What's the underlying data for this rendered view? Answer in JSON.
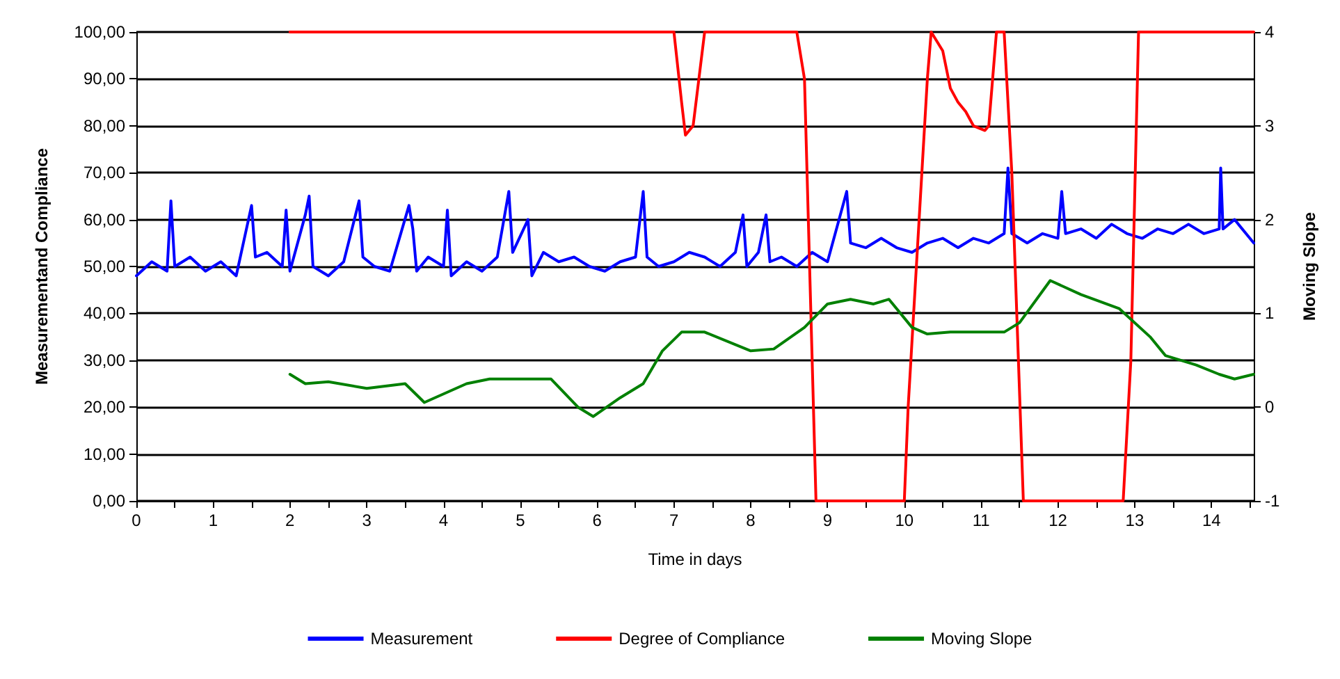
{
  "chart_data": {
    "type": "line",
    "xlabel": "Time in days",
    "ylabel": "Measurementand Compliance",
    "y2label": "Moving Slope",
    "xlim": [
      0,
      14.55
    ],
    "xticks": [
      0,
      {
        "value": 0.5,
        "label": null
      },
      1,
      {
        "value": 1.5,
        "label": null
      },
      2,
      {
        "value": 2.5,
        "label": null
      },
      3,
      {
        "value": 3.5,
        "label": null
      },
      4,
      {
        "value": 4.5,
        "label": null
      },
      5,
      {
        "value": 5.5,
        "label": null
      },
      6,
      {
        "value": 6.5,
        "label": null
      },
      7,
      {
        "value": 7.5,
        "label": null
      },
      8,
      {
        "value": 8.5,
        "label": null
      },
      9,
      {
        "value": 9.5,
        "label": null
      },
      10,
      {
        "value": 10.5,
        "label": null
      },
      11,
      {
        "value": 11.5,
        "label": null
      },
      12,
      {
        "value": 12.5,
        "label": null
      },
      13,
      {
        "value": 13.5,
        "label": null
      },
      14,
      {
        "value": 14.5,
        "label": null
      }
    ],
    "ylim": [
      0,
      100
    ],
    "yticks": [
      {
        "value": 0,
        "label": "0,00"
      },
      {
        "value": 10,
        "label": "10,00"
      },
      {
        "value": 20,
        "label": "20,00"
      },
      {
        "value": 30,
        "label": "30,00"
      },
      {
        "value": 40,
        "label": "40,00"
      },
      {
        "value": 50,
        "label": "50,00"
      },
      {
        "value": 60,
        "label": "60,00"
      },
      {
        "value": 70,
        "label": "70,00"
      },
      {
        "value": 80,
        "label": "80,00"
      },
      {
        "value": 90,
        "label": "90,00"
      },
      {
        "value": 100,
        "label": "100,00"
      }
    ],
    "y2lim": [
      -1,
      4
    ],
    "y2ticks": [
      -1,
      0,
      1,
      2,
      3,
      4
    ],
    "grid": "y",
    "legend": "bottom",
    "marker": "none",
    "line_style": "solid",
    "series": [
      {
        "name": "Measurement",
        "color": "#0000ff",
        "x": [
          0,
          0.2,
          0.4,
          0.45,
          0.5,
          0.7,
          0.9,
          1.1,
          1.3,
          1.5,
          1.55,
          1.7,
          1.9,
          1.95,
          2.0,
          2.2,
          2.25,
          2.3,
          2.5,
          2.7,
          2.9,
          2.95,
          3.1,
          3.3,
          3.55,
          3.6,
          3.65,
          3.8,
          4.0,
          4.05,
          4.1,
          4.3,
          4.5,
          4.7,
          4.85,
          4.9,
          5.1,
          5.15,
          5.3,
          5.5,
          5.7,
          5.9,
          6.1,
          6.3,
          6.5,
          6.6,
          6.65,
          6.8,
          7.0,
          7.2,
          7.4,
          7.6,
          7.8,
          7.9,
          7.95,
          8.1,
          8.2,
          8.25,
          8.4,
          8.6,
          8.8,
          9.0,
          9.25,
          9.3,
          9.5,
          9.7,
          9.9,
          10.1,
          10.3,
          10.5,
          10.7,
          10.9,
          11.1,
          11.3,
          11.35,
          11.4,
          11.6,
          11.8,
          12.0,
          12.05,
          12.1,
          12.3,
          12.5,
          12.7,
          12.9,
          13.1,
          13.3,
          13.5,
          13.7,
          13.9,
          14.1,
          14.12,
          14.15,
          14.3,
          14.5,
          14.55
        ],
        "values": [
          48,
          51,
          49,
          64,
          50,
          52,
          49,
          51,
          48,
          63,
          52,
          53,
          50,
          62,
          49,
          61,
          65,
          50,
          48,
          51,
          64,
          52,
          50,
          49,
          63,
          58,
          49,
          52,
          50,
          62,
          48,
          51,
          49,
          52,
          66,
          53,
          60,
          48,
          53,
          51,
          52,
          50,
          49,
          51,
          52,
          66,
          52,
          50,
          51,
          53,
          52,
          50,
          53,
          61,
          50,
          53,
          61,
          51,
          52,
          50,
          53,
          51,
          66,
          55,
          54,
          56,
          54,
          53,
          55,
          56,
          54,
          56,
          55,
          57,
          71,
          57,
          55,
          57,
          56,
          66,
          57,
          58,
          56,
          59,
          57,
          56,
          58,
          57,
          59,
          57,
          58,
          71,
          58,
          60,
          56,
          55
        ]
      },
      {
        "name": "Degree of Compliance",
        "color": "#ff0000",
        "x": [
          2,
          7.0,
          7.1,
          7.15,
          7.25,
          7.4,
          8.6,
          8.7,
          8.85,
          10.0,
          10.05,
          10.3,
          10.35,
          10.5,
          10.6,
          10.7,
          10.8,
          10.9,
          11.05,
          11.1,
          11.2,
          11.3,
          11.4,
          11.55,
          12.85,
          12.95,
          13.05,
          14.55
        ],
        "values": [
          100,
          100,
          85,
          78,
          80,
          100,
          100,
          90,
          0,
          0,
          20,
          90,
          100,
          96,
          88,
          85,
          83,
          80,
          79,
          80,
          100,
          100,
          70,
          0,
          0,
          30,
          100,
          100
        ]
      },
      {
        "name": "Moving Slope",
        "color": "#008000",
        "axis": "y2",
        "x": [
          2,
          2.2,
          2.5,
          3,
          3.5,
          3.75,
          4.3,
          4.6,
          5.4,
          5.75,
          5.95,
          6.3,
          6.6,
          6.85,
          7.1,
          7.4,
          8.0,
          8.3,
          8.7,
          9.0,
          9.3,
          9.6,
          9.8,
          10.1,
          10.3,
          10.6,
          11.1,
          11.3,
          11.5,
          11.9,
          12.3,
          12.8,
          13.2,
          13.4,
          13.8,
          14.1,
          14.3,
          14.55
        ],
        "values": [
          0.35,
          0.25,
          0.27,
          0.2,
          0.25,
          0.05,
          0.25,
          0.3,
          0.3,
          0,
          -0.1,
          0.1,
          0.25,
          0.6,
          0.8,
          0.8,
          0.6,
          0.62,
          0.85,
          1.1,
          1.15,
          1.1,
          1.15,
          0.85,
          0.78,
          0.8,
          0.8,
          0.8,
          0.9,
          1.35,
          1.2,
          1.05,
          0.75,
          0.55,
          0.45,
          0.35,
          0.3,
          0.35
        ]
      }
    ]
  }
}
